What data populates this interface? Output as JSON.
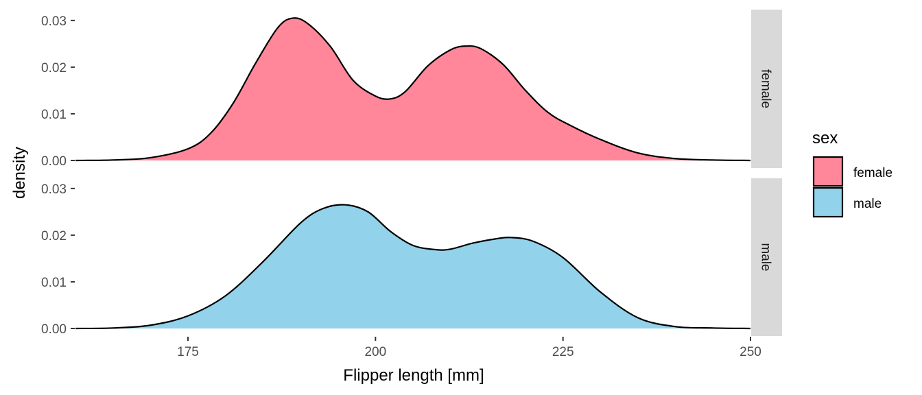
{
  "chart_data": {
    "type": "area",
    "subtype": "density",
    "facet": "rows",
    "xlabel": "Flipper length [mm]",
    "ylabel": "density",
    "xlim": [
      160,
      250
    ],
    "ylim": [
      0,
      0.032
    ],
    "x_ticks": [
      175,
      200,
      225,
      250
    ],
    "y_ticks": [
      {
        "value": 0,
        "label": "0.00"
      },
      {
        "value": 0.01,
        "label": "0.01"
      },
      {
        "value": 0.02,
        "label": "0.02"
      },
      {
        "value": 0.03,
        "label": "0.03"
      }
    ],
    "grid": false,
    "legend": {
      "title": "sex",
      "position": "right",
      "entries": [
        {
          "label": "female",
          "color": "#FF8799"
        },
        {
          "label": "male",
          "color": "#92D2EB"
        }
      ]
    },
    "series": [
      {
        "name": "female",
        "color": "#FF8799",
        "x": [
          160,
          165,
          170,
          175,
          178,
          181,
          184,
          187,
          189,
          191,
          194,
          197,
          200,
          202,
          204,
          207,
          210,
          212,
          214,
          217,
          220,
          223,
          226,
          230,
          235,
          240,
          245,
          250
        ],
        "y": [
          0.0,
          0.0001,
          0.0006,
          0.0025,
          0.0058,
          0.0122,
          0.0208,
          0.0285,
          0.0305,
          0.0293,
          0.0244,
          0.0172,
          0.0138,
          0.0132,
          0.0148,
          0.0203,
          0.0237,
          0.0245,
          0.024,
          0.0206,
          0.015,
          0.0103,
          0.0075,
          0.0045,
          0.0016,
          0.0004,
          0.0001,
          0.0
        ]
      },
      {
        "name": "male",
        "color": "#92D2EB",
        "x": [
          160,
          165,
          170,
          175,
          180,
          185,
          190,
          193,
          196,
          199,
          202,
          205,
          208,
          210,
          213,
          216,
          218,
          221,
          225,
          230,
          235,
          240,
          245,
          250
        ],
        "y": [
          0.0,
          0.0001,
          0.0007,
          0.0027,
          0.007,
          0.0143,
          0.0226,
          0.0257,
          0.0265,
          0.025,
          0.0208,
          0.0178,
          0.0169,
          0.017,
          0.0183,
          0.0192,
          0.0195,
          0.0187,
          0.0152,
          0.0078,
          0.0023,
          0.0004,
          0.0001,
          0.0
        ]
      }
    ],
    "panels": [
      {
        "strip": "female",
        "series": "female"
      },
      {
        "strip": "male",
        "series": "male"
      }
    ]
  }
}
